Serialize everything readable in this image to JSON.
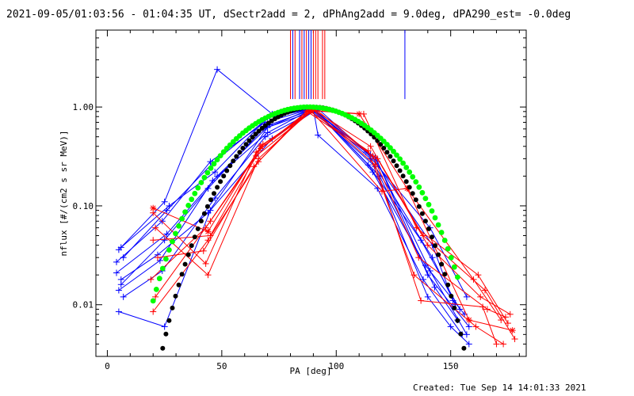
{
  "chart_data": {
    "type": "line",
    "title": "2021-09-05/01:03:56 - 01:04:35 UT, dSectr2add = 2, dPhAng2add = 9.0deg, dPA290_est= -0.0deg",
    "xlabel": "PA [deg]",
    "ylabel": "nflux [#/(cm2 s sr MeV)]",
    "footer": "Created: Tue Sep 14 14:01:33 2021",
    "xlim": [
      -5,
      183
    ],
    "ylim": [
      0.003,
      6.0
    ],
    "yscale": "log",
    "grid": false,
    "x_ticks": [
      0,
      50,
      100,
      150
    ],
    "x_tick_labels": [
      "0",
      "50",
      "100",
      "150"
    ],
    "y_ticks": [
      0.01,
      0.1,
      1.0
    ],
    "y_tick_labels": [
      "0.01",
      "0.10",
      "1.00"
    ],
    "colors": {
      "blue": "#0000ff",
      "red": "#ff0000",
      "black": "#000000",
      "green": "#00ff00"
    },
    "series": [
      {
        "color": "blue",
        "marker": "plus",
        "x": [
          5,
          25,
          48,
          72,
          90,
          115,
          140,
          150,
          158
        ],
        "y": [
          0.036,
          0.11,
          2.4,
          0.85,
          0.96,
          0.3,
          0.012,
          0.006,
          0.004
        ]
      },
      {
        "color": "blue",
        "marker": "plus",
        "x": [
          6,
          27,
          47,
          70,
          89,
          117,
          142,
          152
        ],
        "y": [
          0.038,
          0.1,
          0.22,
          0.78,
          0.95,
          0.25,
          0.03,
          0.01
        ]
      },
      {
        "color": "blue",
        "marker": "plus",
        "x": [
          7,
          26,
          46,
          71,
          90,
          92,
          118,
          138,
          155
        ],
        "y": [
          0.03,
          0.09,
          0.27,
          0.8,
          0.96,
          0.52,
          0.15,
          0.018,
          0.005
        ]
      },
      {
        "color": "blue",
        "marker": "plus",
        "x": [
          4,
          24,
          45,
          69,
          88,
          113,
          141,
          157
        ],
        "y": [
          0.027,
          0.07,
          0.28,
          0.7,
          0.94,
          0.35,
          0.06,
          0.012
        ]
      },
      {
        "color": "blue",
        "marker": "plus",
        "x": [
          6,
          25,
          44,
          68,
          91,
          119,
          143,
          153
        ],
        "y": [
          0.016,
          0.045,
          0.15,
          0.6,
          0.92,
          0.2,
          0.015,
          0.007
        ]
      },
      {
        "color": "blue",
        "marker": "plus",
        "x": [
          5,
          23,
          46,
          70,
          90,
          116,
          139,
          156
        ],
        "y": [
          0.014,
          0.028,
          0.18,
          0.55,
          0.97,
          0.22,
          0.025,
          0.008
        ]
      },
      {
        "color": "blue",
        "marker": "plus",
        "x": [
          7,
          24,
          47,
          69,
          92,
          118,
          140,
          158
        ],
        "y": [
          0.012,
          0.022,
          0.12,
          0.5,
          0.96,
          0.28,
          0.02,
          0.006
        ]
      },
      {
        "color": "blue",
        "marker": "plus",
        "x": [
          5,
          25,
          45,
          72,
          91,
          114,
          137,
          154
        ],
        "y": [
          0.0085,
          0.006,
          0.09,
          0.48,
          0.93,
          0.26,
          0.045,
          0.009
        ]
      },
      {
        "color": "blue",
        "marker": "plus",
        "x": [
          6,
          22,
          44,
          70,
          89,
          117,
          141,
          157
        ],
        "y": [
          0.018,
          0.032,
          0.085,
          0.62,
          0.96,
          0.31,
          0.022,
          0.005
        ]
      },
      {
        "color": "blue",
        "marker": "plus",
        "x": [
          4,
          26,
          48,
          71,
          90,
          115,
          142,
          151
        ],
        "y": [
          0.021,
          0.052,
          0.2,
          0.66,
          0.95,
          0.33,
          0.04,
          0.011
        ]
      },
      {
        "color": "red",
        "marker": "plus",
        "x": [
          20,
          43,
          65,
          88,
          112,
          135,
          162,
          175
        ],
        "y": [
          0.085,
          0.026,
          0.35,
          0.93,
          0.85,
          0.06,
          0.02,
          0.0065
        ]
      },
      {
        "color": "red",
        "marker": "plus",
        "x": [
          21,
          44,
          66,
          89,
          120,
          131,
          160,
          172
        ],
        "y": [
          0.06,
          0.02,
          0.3,
          0.92,
          0.14,
          0.15,
          0.018,
          0.007
        ]
      },
      {
        "color": "red",
        "marker": "plus",
        "x": [
          20,
          45,
          67,
          90,
          115,
          138,
          165,
          178
        ],
        "y": [
          0.045,
          0.05,
          0.38,
          0.94,
          0.4,
          0.05,
          0.014,
          0.0045
        ]
      },
      {
        "color": "red",
        "marker": "plus",
        "x": [
          22,
          42,
          64,
          87,
          118,
          140,
          163,
          176
        ],
        "y": [
          0.03,
          0.035,
          0.25,
          0.91,
          0.3,
          0.04,
          0.012,
          0.008
        ]
      },
      {
        "color": "red",
        "marker": "plus",
        "x": [
          19,
          43,
          68,
          91,
          116,
          136,
          166,
          174
        ],
        "y": [
          0.018,
          0.06,
          0.42,
          0.95,
          0.32,
          0.03,
          0.009,
          0.0075
        ]
      },
      {
        "color": "red",
        "marker": "plus",
        "x": [
          20,
          44,
          66,
          88,
          114,
          134,
          161,
          173
        ],
        "y": [
          0.0085,
          0.045,
          0.28,
          0.92,
          0.36,
          0.02,
          0.006,
          0.004
        ]
      },
      {
        "color": "red",
        "marker": "plus",
        "x": [
          21,
          45,
          65,
          90,
          117,
          137,
          164,
          170
        ],
        "y": [
          0.012,
          0.07,
          0.32,
          0.93,
          0.26,
          0.011,
          0.0095,
          0.004
        ]
      },
      {
        "color": "red",
        "marker": "asterisk",
        "x": [
          20,
          44,
          67,
          89,
          110,
          131,
          158,
          177
        ],
        "y": [
          0.095,
          0.055,
          0.4,
          0.92,
          0.85,
          0.15,
          0.007,
          0.0055
        ]
      }
    ],
    "model_black": {
      "color": "black",
      "marker": "dot",
      "x_start": 20,
      "x_end": 158,
      "center": 90
    },
    "model_green": {
      "color": "green",
      "marker": "dot",
      "x_start": 20,
      "x_end": 154,
      "center": 88
    },
    "vertical_lines_top": [
      {
        "x": 80,
        "color": "red"
      },
      {
        "x": 81,
        "color": "blue"
      },
      {
        "x": 82,
        "color": "red"
      },
      {
        "x": 84,
        "color": "blue"
      },
      {
        "x": 85,
        "color": "red"
      },
      {
        "x": 86,
        "color": "blue"
      },
      {
        "x": 87,
        "color": "red"
      },
      {
        "x": 88,
        "color": "blue"
      },
      {
        "x": 89,
        "color": "blue"
      },
      {
        "x": 90,
        "color": "red"
      },
      {
        "x": 91,
        "color": "red"
      },
      {
        "x": 92,
        "color": "red"
      },
      {
        "x": 94,
        "color": "red"
      },
      {
        "x": 95,
        "color": "red"
      },
      {
        "x": 130,
        "color": "blue"
      }
    ]
  }
}
